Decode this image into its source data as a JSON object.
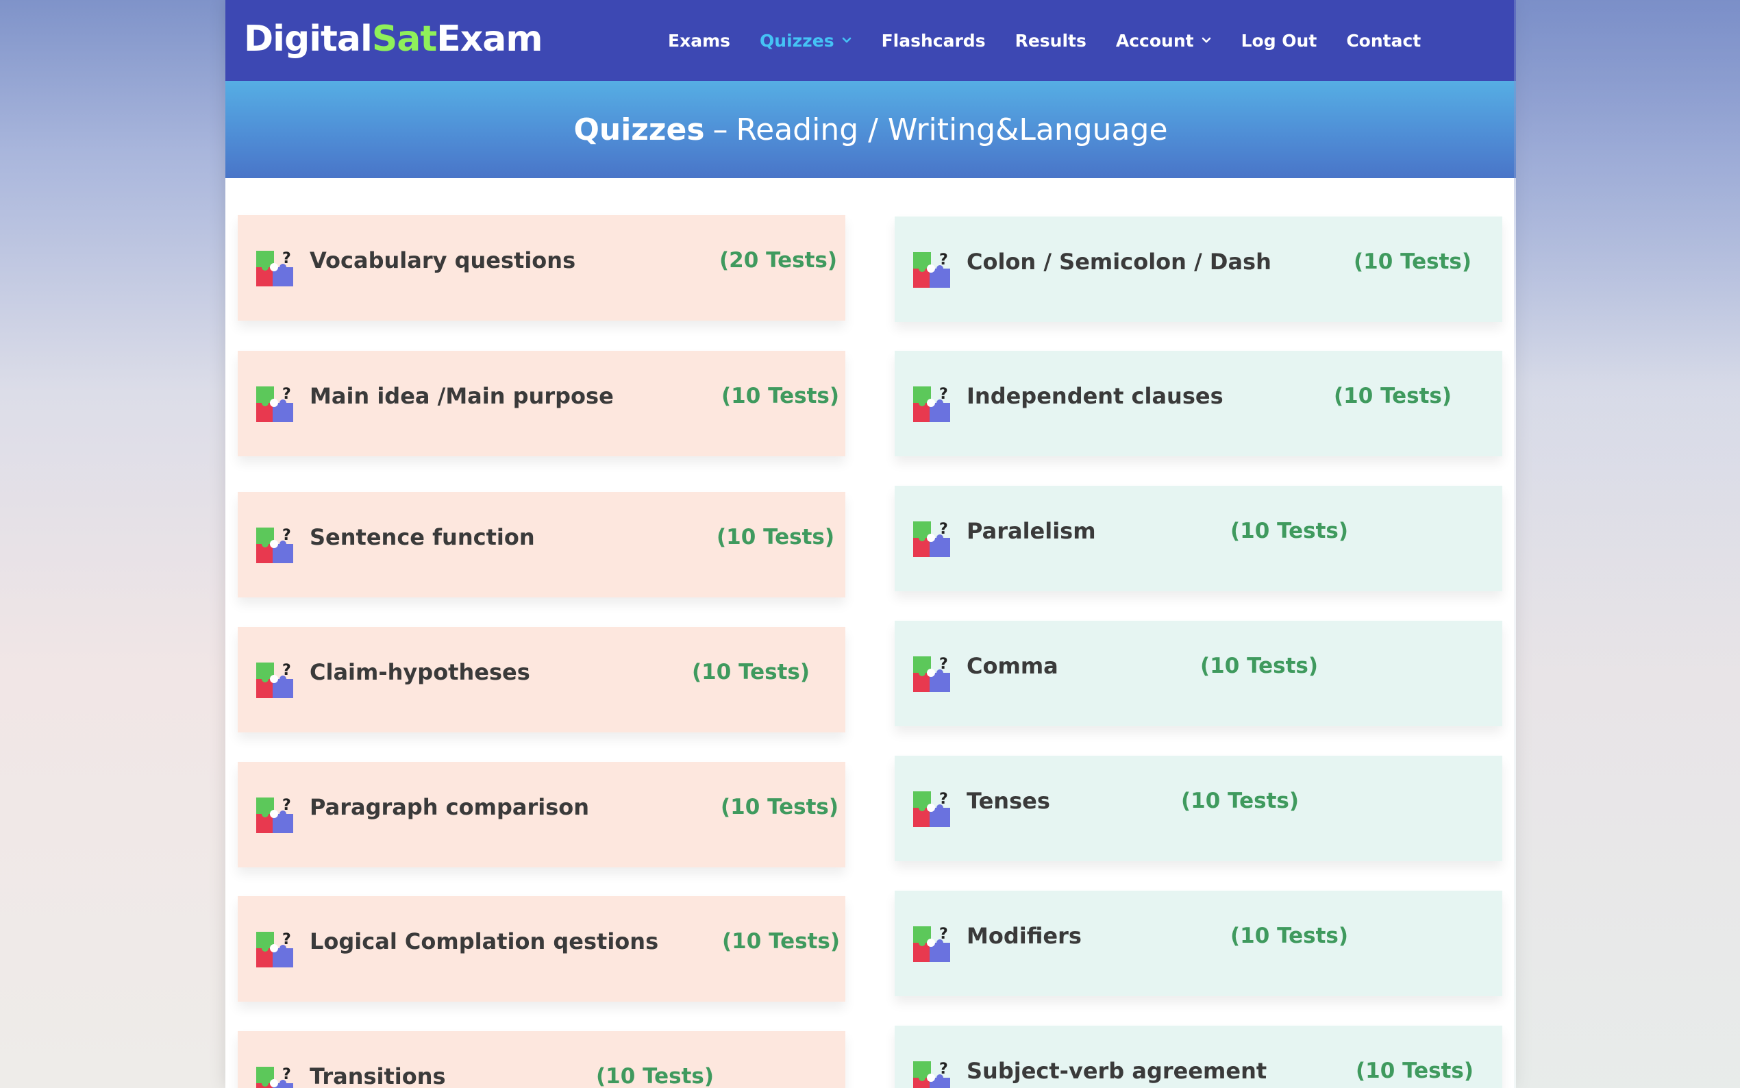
{
  "header": {
    "logo": {
      "part1": "Digital",
      "part2": "Sat",
      "part3": "Exam"
    },
    "nav": [
      {
        "label": "Exams",
        "active": false,
        "dropdown": false
      },
      {
        "label": "Quizzes",
        "active": true,
        "dropdown": true
      },
      {
        "label": "Flashcards",
        "active": false,
        "dropdown": false
      },
      {
        "label": "Results",
        "active": false,
        "dropdown": false
      },
      {
        "label": "Account",
        "active": false,
        "dropdown": true
      },
      {
        "label": "Log Out",
        "active": false,
        "dropdown": false
      },
      {
        "label": "Contact",
        "active": false,
        "dropdown": false
      }
    ]
  },
  "banner": {
    "strong": "Quizzes",
    "separator": "–",
    "rest": "Reading / Writing&Language"
  },
  "colors": {
    "nav_bg": "#3d48b3",
    "active_nav": "#45c3f5",
    "logo_accent": "#8ff05a",
    "left_card_bg": "#fde7de",
    "right_card_bg": "#e6f5f2",
    "count_text": "#3f9a5e"
  },
  "quizzes": {
    "left": [
      {
        "title": "Vocabulary questions",
        "count": "(20 Tests)",
        "icon": "puzzle-question-icon"
      },
      {
        "title": "Main idea /Main purpose",
        "count": "(10 Tests)",
        "icon": "puzzle-question-icon"
      },
      {
        "title": "Sentence function",
        "count": "(10 Tests)",
        "icon": "puzzle-question-icon"
      },
      {
        "title": "Claim-hypotheses",
        "count": "(10 Tests)",
        "icon": "puzzle-question-icon"
      },
      {
        "title": "Paragraph comparison",
        "count": "(10 Tests)",
        "icon": "puzzle-question-icon"
      },
      {
        "title": "Logical Complation qestions",
        "count": "(10 Tests)",
        "icon": "puzzle-question-icon"
      },
      {
        "title": "Transitions",
        "count": "(10 Tests)",
        "icon": "puzzle-question-icon"
      }
    ],
    "right": [
      {
        "title": "Colon / Semicolon / Dash",
        "count": "(10 Tests)",
        "icon": "puzzle-question-icon"
      },
      {
        "title": "Independent clauses",
        "count": "(10 Tests)",
        "icon": "puzzle-question-icon"
      },
      {
        "title": "Paralelism",
        "count": "(10 Tests)",
        "icon": "puzzle-question-icon"
      },
      {
        "title": "Comma",
        "count": "(10 Tests)",
        "icon": "puzzle-question-icon"
      },
      {
        "title": "Tenses",
        "count": "(10 Tests)",
        "icon": "puzzle-question-icon"
      },
      {
        "title": "Modifiers",
        "count": "(10 Tests)",
        "icon": "puzzle-question-icon"
      },
      {
        "title": "Subject-verb agreement",
        "count": "(10 Tests)",
        "icon": "puzzle-question-icon"
      }
    ]
  }
}
